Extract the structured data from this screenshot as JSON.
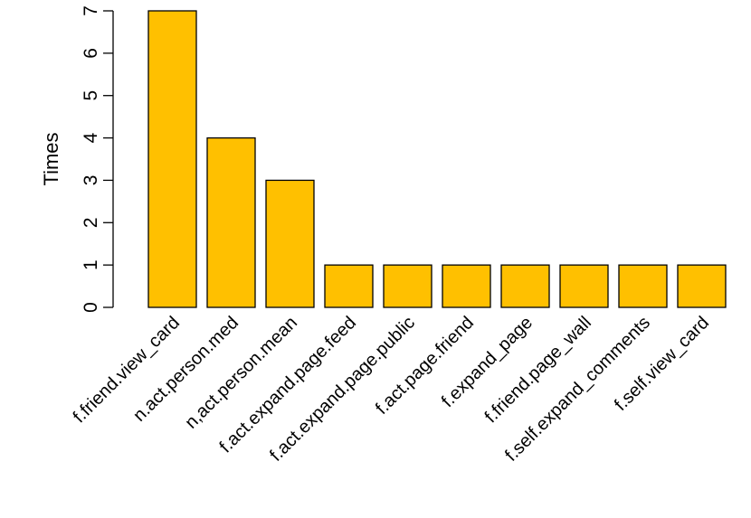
{
  "chart_data": {
    "type": "bar",
    "title": "",
    "xlabel": "",
    "ylabel": "Times",
    "ylim": [
      0,
      7
    ],
    "yticks": [
      0,
      1,
      2,
      3,
      4,
      5,
      6,
      7
    ],
    "grid": false,
    "bar_color": "#FFC000",
    "bar_border_color": "#000000",
    "categories": [
      "f.friend.view_card",
      "n.act.person.med",
      "n,act.person.mean",
      "f.act.expand.page.feed",
      "f.act.expand.page.public",
      "f.act.page.friend",
      "f.expand_page",
      "f.friend.page_wall",
      "f.self.expand_comments",
      "f.self.view_card"
    ],
    "values": [
      7,
      4,
      3,
      1,
      1,
      1,
      1,
      1,
      1,
      1
    ]
  }
}
